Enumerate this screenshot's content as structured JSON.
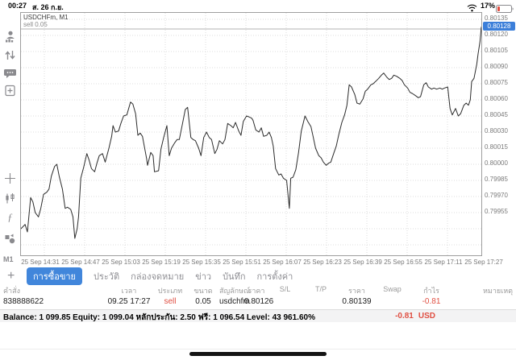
{
  "status_bar": {
    "time": "00:27",
    "date": "ส. 26 ก.ย.",
    "battery_percent": "17%"
  },
  "sidebar": {
    "timeframe": "M1"
  },
  "chart": {
    "symbol_label": "USDCHFm, M1",
    "position_label": "sell 0.05",
    "current_price": "0.80128"
  },
  "chart_data": {
    "type": "line",
    "title": "USDCHFm, M1",
    "timeframe": "M1",
    "sell_line_price": 0.80126,
    "last_price": 0.80128,
    "y_ticks": [
      "0.80135",
      "0.80120",
      "0.80105",
      "0.80090",
      "0.80075",
      "0.80060",
      "0.80045",
      "0.80030",
      "0.80015",
      "0.80000",
      "0.79985",
      "0.79970",
      "0.79955"
    ],
    "x_labels": [
      "25 Sep 14:31",
      "25 Sep 14:47",
      "25 Sep 15:03",
      "25 Sep 15:19",
      "25 Sep 15:35",
      "25 Sep 15:51",
      "25 Sep 16:07",
      "25 Sep 16:23",
      "25 Sep 16:39",
      "25 Sep 16:55",
      "25 Sep 17:11",
      "25 Sep 17:27"
    ],
    "ylim": [
      0.79914,
      0.80141
    ],
    "grid": true,
    "points": [
      [
        0.0,
        0.7994
      ],
      [
        0.009,
        0.79944
      ],
      [
        0.014,
        0.79937
      ],
      [
        0.021,
        0.79969
      ],
      [
        0.026,
        0.79965
      ],
      [
        0.031,
        0.79955
      ],
      [
        0.038,
        0.79951
      ],
      [
        0.043,
        0.79959
      ],
      [
        0.049,
        0.79972
      ],
      [
        0.056,
        0.79974
      ],
      [
        0.061,
        0.79977
      ],
      [
        0.066,
        0.79989
      ],
      [
        0.073,
        0.79998
      ],
      [
        0.078,
        0.8
      ],
      [
        0.083,
        0.79989
      ],
      [
        0.09,
        0.79977
      ],
      [
        0.096,
        0.79959
      ],
      [
        0.101,
        0.7996
      ],
      [
        0.108,
        0.79958
      ],
      [
        0.113,
        0.79951
      ],
      [
        0.117,
        0.79931
      ],
      [
        0.122,
        0.7994
      ],
      [
        0.125,
        0.79951
      ],
      [
        0.13,
        0.79987
      ],
      [
        0.136,
        0.79997
      ],
      [
        0.143,
        0.8001
      ],
      [
        0.148,
        0.80004
      ],
      [
        0.153,
        0.79996
      ],
      [
        0.16,
        0.79993
      ],
      [
        0.165,
        0.80001
      ],
      [
        0.17,
        0.80008
      ],
      [
        0.177,
        0.8001
      ],
      [
        0.183,
        0.80002
      ],
      [
        0.191,
        0.80015
      ],
      [
        0.197,
        0.80026
      ],
      [
        0.2,
        0.80036
      ],
      [
        0.205,
        0.8003
      ],
      [
        0.212,
        0.80031
      ],
      [
        0.217,
        0.80038
      ],
      [
        0.223,
        0.80045
      ],
      [
        0.23,
        0.80046
      ],
      [
        0.238,
        0.80058
      ],
      [
        0.243,
        0.80056
      ],
      [
        0.249,
        0.80047
      ],
      [
        0.254,
        0.80027
      ],
      [
        0.259,
        0.80029
      ],
      [
        0.264,
        0.80026
      ],
      [
        0.273,
        0.80005
      ],
      [
        0.275,
        0.79999
      ],
      [
        0.282,
        0.80011
      ],
      [
        0.287,
        0.80008
      ],
      [
        0.29,
        0.79993
      ],
      [
        0.299,
        0.79994
      ],
      [
        0.304,
        0.80014
      ],
      [
        0.31,
        0.80025
      ],
      [
        0.317,
        0.80036
      ],
      [
        0.322,
        0.80008
      ],
      [
        0.327,
        0.80015
      ],
      [
        0.334,
        0.8002
      ],
      [
        0.339,
        0.80023
      ],
      [
        0.344,
        0.80023
      ],
      [
        0.351,
        0.80038
      ],
      [
        0.357,
        0.80051
      ],
      [
        0.362,
        0.80053
      ],
      [
        0.369,
        0.80025
      ],
      [
        0.374,
        0.80023
      ],
      [
        0.379,
        0.80022
      ],
      [
        0.386,
        0.80015
      ],
      [
        0.391,
        0.80008
      ],
      [
        0.397,
        0.80025
      ],
      [
        0.403,
        0.8003
      ],
      [
        0.409,
        0.80025
      ],
      [
        0.414,
        0.80023
      ],
      [
        0.421,
        0.8001
      ],
      [
        0.426,
        0.80014
      ],
      [
        0.431,
        0.80022
      ],
      [
        0.438,
        0.80019
      ],
      [
        0.443,
        0.80023
      ],
      [
        0.449,
        0.80038
      ],
      [
        0.456,
        0.80036
      ],
      [
        0.461,
        0.80034
      ],
      [
        0.466,
        0.80039
      ],
      [
        0.473,
        0.80031
      ],
      [
        0.478,
        0.80027
      ],
      [
        0.483,
        0.8004
      ],
      [
        0.49,
        0.80045
      ],
      [
        0.496,
        0.80044
      ],
      [
        0.501,
        0.80043
      ],
      [
        0.504,
        0.80041
      ],
      [
        0.51,
        0.80032
      ],
      [
        0.517,
        0.8003
      ],
      [
        0.522,
        0.80034
      ],
      [
        0.527,
        0.80026
      ],
      [
        0.534,
        0.80027
      ],
      [
        0.539,
        0.8003
      ],
      [
        0.544,
        0.80025
      ],
      [
        0.548,
        0.80017
      ],
      [
        0.553,
        0.79996
      ],
      [
        0.56,
        0.7999
      ],
      [
        0.565,
        0.79991
      ],
      [
        0.57,
        0.79987
      ],
      [
        0.577,
        0.79985
      ],
      [
        0.583,
        0.79959
      ],
      [
        0.586,
        0.79987
      ],
      [
        0.591,
        0.79988
      ],
      [
        0.597,
        0.79995
      ],
      [
        0.603,
        0.80011
      ],
      [
        0.609,
        0.80031
      ],
      [
        0.617,
        0.80045
      ],
      [
        0.623,
        0.8004
      ],
      [
        0.63,
        0.80035
      ],
      [
        0.635,
        0.80025
      ],
      [
        0.64,
        0.80015
      ],
      [
        0.647,
        0.80008
      ],
      [
        0.652,
        0.80006
      ],
      [
        0.657,
        0.80002
      ],
      [
        0.663,
        0.79999
      ],
      [
        0.668,
        0.80001
      ],
      [
        0.673,
        0.80002
      ],
      [
        0.68,
        0.80011
      ],
      [
        0.685,
        0.80017
      ],
      [
        0.69,
        0.80027
      ],
      [
        0.697,
        0.80039
      ],
      [
        0.703,
        0.80046
      ],
      [
        0.708,
        0.80055
      ],
      [
        0.713,
        0.80074
      ],
      [
        0.718,
        0.80072
      ],
      [
        0.725,
        0.80065
      ],
      [
        0.73,
        0.80057
      ],
      [
        0.736,
        0.80056
      ],
      [
        0.743,
        0.80061
      ],
      [
        0.748,
        0.80068
      ],
      [
        0.753,
        0.8007
      ],
      [
        0.76,
        0.80074
      ],
      [
        0.765,
        0.80075
      ],
      [
        0.77,
        0.80077
      ],
      [
        0.777,
        0.8008
      ],
      [
        0.783,
        0.80083
      ],
      [
        0.788,
        0.80085
      ],
      [
        0.795,
        0.80081
      ],
      [
        0.8,
        0.80079
      ],
      [
        0.805,
        0.8008
      ],
      [
        0.81,
        0.80083
      ],
      [
        0.816,
        0.80082
      ],
      [
        0.823,
        0.8008
      ],
      [
        0.828,
        0.80078
      ],
      [
        0.833,
        0.80074
      ],
      [
        0.84,
        0.80071
      ],
      [
        0.845,
        0.80067
      ],
      [
        0.85,
        0.80066
      ],
      [
        0.857,
        0.80064
      ],
      [
        0.863,
        0.80062
      ],
      [
        0.868,
        0.80063
      ],
      [
        0.875,
        0.80074
      ],
      [
        0.88,
        0.80076
      ],
      [
        0.885,
        0.80072
      ],
      [
        0.892,
        0.8007
      ],
      [
        0.897,
        0.80071
      ],
      [
        0.903,
        0.8007
      ],
      [
        0.91,
        0.80071
      ],
      [
        0.915,
        0.8007
      ],
      [
        0.92,
        0.80071
      ],
      [
        0.927,
        0.80072
      ],
      [
        0.932,
        0.80052
      ],
      [
        0.937,
        0.80046
      ],
      [
        0.944,
        0.80052
      ],
      [
        0.95,
        0.80045
      ],
      [
        0.955,
        0.80047
      ],
      [
        0.962,
        0.80055
      ],
      [
        0.967,
        0.80057
      ],
      [
        0.972,
        0.80055
      ],
      [
        0.976,
        0.8006
      ],
      [
        0.979,
        0.80077
      ],
      [
        0.984,
        0.8008
      ],
      [
        0.99,
        0.80093
      ],
      [
        0.993,
        0.80103
      ],
      [
        0.997,
        0.80114
      ],
      [
        1.0,
        0.80128
      ]
    ]
  },
  "tab_bar": {
    "add_label": "+",
    "items": [
      {
        "label": "การซื้อขาย",
        "selected": true
      },
      {
        "label": "ประวัติ",
        "selected": false
      },
      {
        "label": "กล่องจดหมาย",
        "selected": false
      },
      {
        "label": "ข่าว",
        "selected": false
      },
      {
        "label": "บันทึก",
        "selected": false
      },
      {
        "label": "การตั้งค่า",
        "selected": false
      }
    ]
  },
  "positions_table": {
    "headers": [
      "คำสั่ง",
      "เวลา",
      "ประเภท",
      "ขนาด",
      "สัญลักษณ์",
      "ราคา",
      "S/L",
      "T/P",
      "ราคา",
      "Swap",
      "กำไร",
      "หมายเหตุ"
    ],
    "rows": [
      [
        "838888622",
        "09.25 17:27",
        "sell",
        "0.05",
        "usdchfm",
        "0.80126",
        "",
        "",
        "0.80139",
        "",
        "-0.81",
        ""
      ]
    ]
  },
  "account_bar": {
    "summary": "Balance: 1 099.85 Equity: 1 099.04 หลักประกัน: 2.50 ฟรี: 1 096.54 Level: 43 961.60%",
    "profit": "-0.81",
    "currency": "USD",
    "profit_color": "#e04f42"
  },
  "colors": {
    "accent_blue": "#4186db",
    "badge_blue": "#3c7fd9",
    "loss_red": "#e04f42"
  }
}
